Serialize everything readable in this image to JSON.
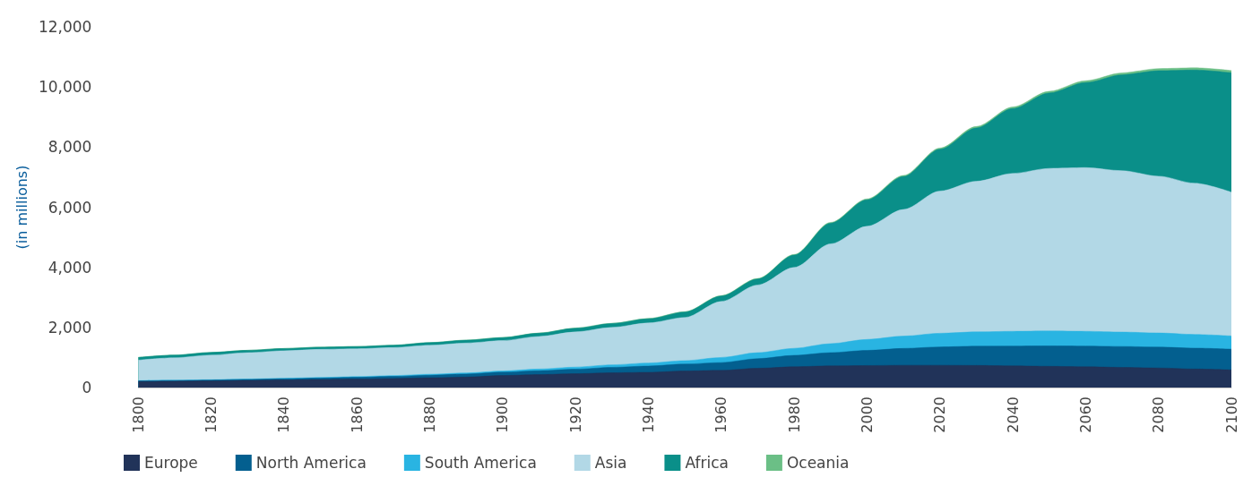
{
  "chart_data": {
    "type": "area",
    "stacked": true,
    "ylabel": "(in millions)",
    "x": [
      1800,
      1810,
      1820,
      1830,
      1840,
      1850,
      1860,
      1870,
      1880,
      1890,
      1900,
      1910,
      1920,
      1930,
      1940,
      1950,
      1960,
      1970,
      1980,
      1990,
      2000,
      2010,
      2020,
      2030,
      2040,
      2050,
      2060,
      2070,
      2080,
      2090,
      2100
    ],
    "xlim": [
      1800,
      2100
    ],
    "xticks": [
      1800,
      1820,
      1840,
      1860,
      1880,
      1900,
      1920,
      1940,
      1960,
      1980,
      2000,
      2020,
      2040,
      2060,
      2080,
      2100
    ],
    "ylim": [
      0,
      12000
    ],
    "yticks": [
      0,
      {
        "value": 2000,
        "label": "2,000"
      },
      {
        "value": 4000,
        "label": "4,000"
      },
      {
        "value": 6000,
        "label": "6,000"
      },
      {
        "value": 8000,
        "label": "8,000"
      },
      {
        "value": 10000,
        "label": "10,000"
      },
      {
        "value": 12000,
        "label": "12,000"
      }
    ],
    "grid": false,
    "legend": "bottom",
    "series": [
      {
        "name": "Europe",
        "color": "#213359",
        "values": [
          200,
          210,
          220,
          235,
          250,
          265,
          280,
          300,
          325,
          350,
          400,
          430,
          460,
          490,
          505,
          550,
          570,
          640,
          690,
          720,
          730,
          740,
          740,
          735,
          720,
          705,
          690,
          670,
          650,
          615,
          585
        ]
      },
      {
        "name": "North America",
        "color": "#035f8f",
        "values": [
          20,
          24,
          28,
          35,
          42,
          50,
          60,
          70,
          85,
          100,
          110,
          130,
          150,
          180,
          210,
          230,
          260,
          320,
          380,
          440,
          505,
          560,
          610,
          640,
          660,
          680,
          690,
          695,
          695,
          695,
          690
        ]
      },
      {
        "name": "South America",
        "color": "#29b4e2",
        "values": [
          10,
          11,
          12,
          14,
          16,
          20,
          24,
          28,
          32,
          36,
          40,
          55,
          70,
          85,
          100,
          115,
          170,
          200,
          235,
          300,
          365,
          410,
          455,
          475,
          490,
          495,
          490,
          480,
          470,
          455,
          440
        ]
      },
      {
        "name": "Asia",
        "color": "#b2d8e6",
        "values": [
          681,
          745,
          820,
          876,
          916,
          935,
          926,
          932,
          964,
          994,
          1012,
          1085,
          1170,
          1245,
          1335,
          1435,
          1864,
          2251,
          2692,
          3318,
          3764,
          4214,
          4731,
          5012,
          5252,
          5411,
          5447,
          5368,
          5216,
          5031,
          4782
        ]
      },
      {
        "name": "Africa",
        "color": "#0a8f89",
        "values": [
          90,
          88,
          88,
          78,
          74,
          73,
          74,
          77,
          87,
          95,
          99,
          108,
          122,
          130,
          139,
          182,
          180,
          199,
          407,
          689,
          881,
          1096,
          1389,
          1774,
          2160,
          2508,
          2830,
          3190,
          3511,
          3769,
          3974
        ]
      },
      {
        "name": "Oceania",
        "color": "#6bbf86",
        "values": [
          2,
          2,
          2,
          2,
          2,
          2,
          3,
          3,
          4,
          5,
          6,
          7,
          8,
          10,
          11,
          13,
          16,
          20,
          23,
          27,
          31,
          37,
          43,
          48,
          53,
          57,
          61,
          65,
          69,
          72,
          75
        ]
      }
    ]
  }
}
